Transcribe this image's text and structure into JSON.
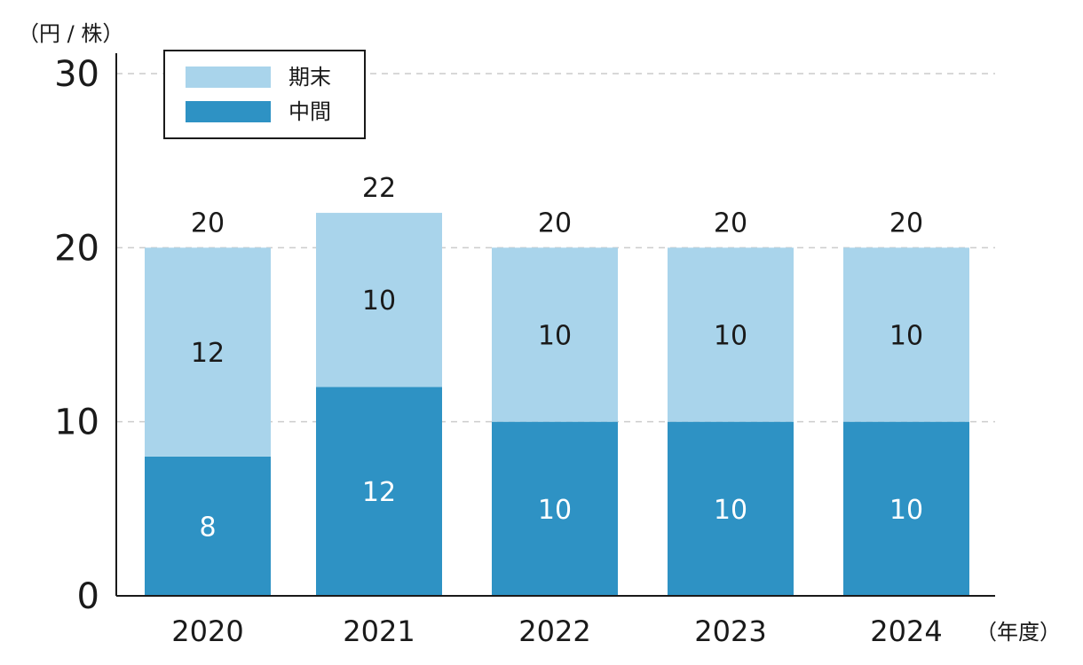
{
  "chart_data": {
    "type": "bar",
    "stacked": true,
    "categories": [
      "2020",
      "2021",
      "2022",
      "2023",
      "2024"
    ],
    "series": [
      {
        "name": "中間",
        "values": [
          8,
          12,
          10,
          10,
          10
        ],
        "color": "#2e92c4",
        "label_color": "#ffffff"
      },
      {
        "name": "期末",
        "values": [
          12,
          10,
          10,
          10,
          10
        ],
        "color": "#a9d4eb",
        "label_color": "#1a1a1a"
      }
    ],
    "totals": [
      20,
      22,
      20,
      20,
      20
    ],
    "y_unit_label": "（円 / 株）",
    "x_unit_label": "（年度）",
    "ylim": [
      0,
      30
    ],
    "yticks": [
      0,
      10,
      20,
      30
    ],
    "grid": true,
    "grid_color": "#cccccc",
    "axis_color": "#1a1a1a",
    "legend": {
      "placement": "top-left",
      "order": [
        "期末",
        "中間"
      ]
    }
  }
}
